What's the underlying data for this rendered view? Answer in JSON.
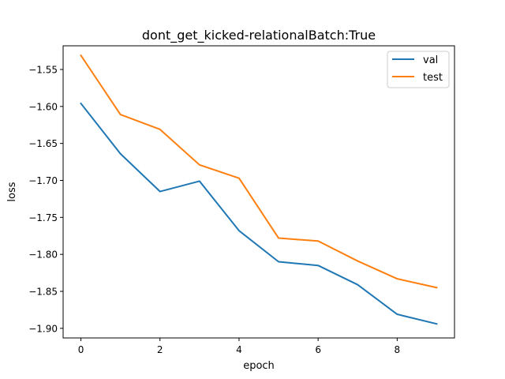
{
  "chart_data": {
    "type": "line",
    "title": "dont_get_kicked-relationalBatch:True",
    "xlabel": "epoch",
    "ylabel": "loss",
    "x": [
      0,
      1,
      2,
      3,
      4,
      5,
      6,
      7,
      8,
      9
    ],
    "xlim": [
      -0.45,
      9.45
    ],
    "ylim": [
      -1.913,
      -1.518
    ],
    "xticks": [
      0,
      2,
      4,
      6,
      8
    ],
    "yticks": [
      -1.55,
      -1.6,
      -1.65,
      -1.7,
      -1.75,
      -1.8,
      -1.85,
      -1.9
    ],
    "xtick_labels": [
      "0",
      "2",
      "4",
      "6",
      "8"
    ],
    "ytick_labels": [
      "−1.55",
      "−1.60",
      "−1.65",
      "−1.70",
      "−1.75",
      "−1.80",
      "−1.85",
      "−1.90"
    ],
    "grid": false,
    "legend_position": "top-right",
    "series": [
      {
        "name": "val",
        "color": "#1f77b4",
        "values": [
          -1.596,
          -1.664,
          -1.715,
          -1.701,
          -1.768,
          -1.81,
          -1.815,
          -1.841,
          -1.881,
          -1.894
        ]
      },
      {
        "name": "test",
        "color": "#ff7f0e",
        "values": [
          -1.531,
          -1.611,
          -1.631,
          -1.679,
          -1.697,
          -1.778,
          -1.782,
          -1.809,
          -1.833,
          -1.845
        ]
      }
    ]
  }
}
